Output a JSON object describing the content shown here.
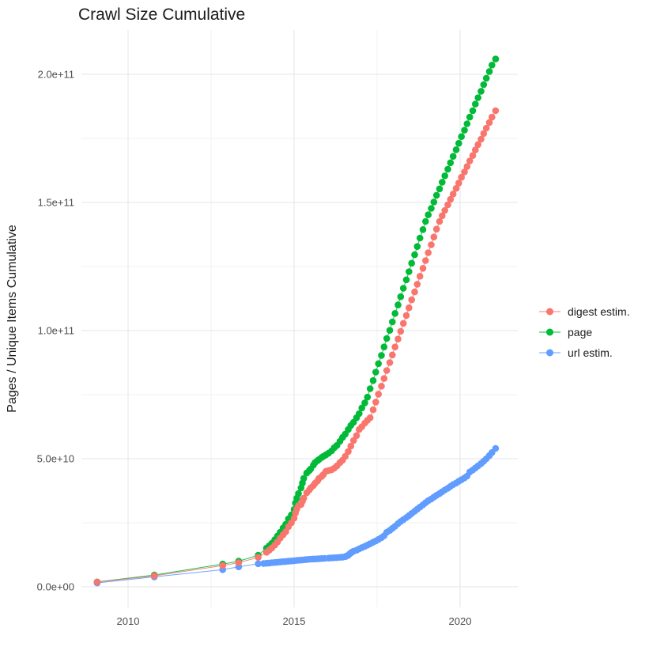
{
  "title": "Crawl Size Cumulative",
  "axes": {
    "y_title": "Pages / Unique Items Cumulative",
    "x_title": "",
    "y_ticks": [
      {
        "label": "0.0e+00",
        "value_e9": 0
      },
      {
        "label": "5.0e+10",
        "value_e9": 50
      },
      {
        "label": "1.0e+11",
        "value_e9": 100
      },
      {
        "label": "1.5e+11",
        "value_e9": 150
      },
      {
        "label": "2.0e+11",
        "value_e9": 200
      }
    ],
    "x_ticks": [
      {
        "label": "2010",
        "value": 2010
      },
      {
        "label": "2015",
        "value": 2015
      },
      {
        "label": "2020",
        "value": 2020
      }
    ],
    "y_minor_e9": [
      25,
      75,
      125,
      175
    ],
    "x_minor": [
      2012.5,
      2017.5
    ]
  },
  "legend": {
    "position": "right",
    "items": [
      {
        "label": "digest estim.",
        "color": "#F8766D"
      },
      {
        "label": "page",
        "color": "#00BA38"
      },
      {
        "label": "url estim.",
        "color": "#619CFF"
      }
    ]
  },
  "style": {
    "background": "#FFFFFF",
    "grid_major_color": "#E6E6E6",
    "grid_minor_color": "#F1F1F1",
    "tick_label_color": "#4D4D4D",
    "text_color": "#1A1A1A"
  },
  "chart_data": {
    "type": "scatter",
    "title": "Crawl Size Cumulative",
    "xlabel": "",
    "ylabel": "Pages / Unique Items Cumulative",
    "xlim": [
      2008.5,
      2021.7
    ],
    "ylim": [
      0,
      216000000000.0
    ],
    "grid": true,
    "legend_position": "right",
    "value_scale": "y values in points_e9 are billions (1e9) of pages / unique items; x values are decimal years",
    "series": [
      {
        "name": "digest estim.",
        "color": "#F8766D",
        "points_e9": [
          [
            2009.07,
            1.85
          ],
          [
            2010.79,
            4.3
          ],
          [
            2012.85,
            8.3
          ],
          [
            2013.33,
            9.4
          ],
          [
            2013.92,
            11.5
          ],
          [
            2014.17,
            13.5
          ],
          [
            2014.25,
            14.3
          ],
          [
            2014.33,
            15.2
          ],
          [
            2014.42,
            16.3
          ],
          [
            2014.5,
            17.5
          ],
          [
            2014.58,
            19.0
          ],
          [
            2014.67,
            20.3
          ],
          [
            2014.75,
            21.5
          ],
          [
            2014.83,
            23.5
          ],
          [
            2014.92,
            25.0
          ],
          [
            2015.0,
            26.8
          ],
          [
            2015.04,
            28.8
          ],
          [
            2015.08,
            30.3
          ],
          [
            2015.13,
            31.7
          ],
          [
            2015.21,
            32.1
          ],
          [
            2015.25,
            33.4
          ],
          [
            2015.29,
            34.6
          ],
          [
            2015.38,
            36.7
          ],
          [
            2015.46,
            37.8
          ],
          [
            2015.5,
            38.6
          ],
          [
            2015.58,
            39.5
          ],
          [
            2015.63,
            40.4
          ],
          [
            2015.71,
            41.4
          ],
          [
            2015.75,
            42.3
          ],
          [
            2015.83,
            43.1
          ],
          [
            2015.88,
            43.8
          ],
          [
            2015.96,
            45.1
          ],
          [
            2016.04,
            45.4
          ],
          [
            2016.13,
            45.7
          ],
          [
            2016.21,
            46.3
          ],
          [
            2016.29,
            47.2
          ],
          [
            2016.38,
            48.5
          ],
          [
            2016.46,
            49.4
          ],
          [
            2016.54,
            50.9
          ],
          [
            2016.63,
            52.8
          ],
          [
            2016.71,
            54.9
          ],
          [
            2016.79,
            57.1
          ],
          [
            2016.88,
            59.0
          ],
          [
            2016.96,
            61.4
          ],
          [
            2017.04,
            62.5
          ],
          [
            2017.13,
            63.9
          ],
          [
            2017.21,
            65.0
          ],
          [
            2017.29,
            66.0
          ],
          [
            2017.38,
            69.1
          ],
          [
            2017.46,
            72.1
          ],
          [
            2017.54,
            75.2
          ],
          [
            2017.63,
            78.3
          ],
          [
            2017.71,
            81.3
          ],
          [
            2017.79,
            84.4
          ],
          [
            2017.88,
            87.5
          ],
          [
            2017.96,
            90.5
          ],
          [
            2018.04,
            93.6
          ],
          [
            2018.13,
            96.7
          ],
          [
            2018.21,
            99.7
          ],
          [
            2018.29,
            102.8
          ],
          [
            2018.38,
            105.9
          ],
          [
            2018.46,
            108.9
          ],
          [
            2018.54,
            112.0
          ],
          [
            2018.63,
            115.1
          ],
          [
            2018.71,
            118.1
          ],
          [
            2018.79,
            121.2
          ],
          [
            2018.88,
            124.3
          ],
          [
            2018.96,
            127.3
          ],
          [
            2019.04,
            130.4
          ],
          [
            2019.13,
            133.5
          ],
          [
            2019.21,
            136.5
          ],
          [
            2019.29,
            139.6
          ],
          [
            2019.38,
            142.6
          ],
          [
            2019.46,
            144.8
          ],
          [
            2019.54,
            146.9
          ],
          [
            2019.63,
            149.1
          ],
          [
            2019.71,
            151.2
          ],
          [
            2019.79,
            153.3
          ],
          [
            2019.88,
            155.5
          ],
          [
            2019.96,
            157.6
          ],
          [
            2020.04,
            159.8
          ],
          [
            2020.13,
            161.9
          ],
          [
            2020.21,
            164.0
          ],
          [
            2020.29,
            166.2
          ],
          [
            2020.38,
            168.3
          ],
          [
            2020.46,
            170.5
          ],
          [
            2020.54,
            172.6
          ],
          [
            2020.63,
            174.7
          ],
          [
            2020.71,
            176.9
          ],
          [
            2020.79,
            179.0
          ],
          [
            2020.88,
            181.2
          ],
          [
            2020.96,
            183.3
          ],
          [
            2021.07,
            185.8
          ]
        ]
      },
      {
        "name": "page",
        "color": "#00BA38",
        "points_e9": [
          [
            2009.07,
            1.9
          ],
          [
            2010.79,
            4.6
          ],
          [
            2012.85,
            8.9
          ],
          [
            2013.33,
            10.0
          ],
          [
            2013.92,
            12.3
          ],
          [
            2014.17,
            15.1
          ],
          [
            2014.25,
            16.0
          ],
          [
            2014.33,
            17.0
          ],
          [
            2014.42,
            18.4
          ],
          [
            2014.5,
            19.8
          ],
          [
            2014.58,
            21.3
          ],
          [
            2014.67,
            23.0
          ],
          [
            2014.75,
            24.4
          ],
          [
            2014.83,
            26.5
          ],
          [
            2014.92,
            28.1
          ],
          [
            2015.0,
            30.2
          ],
          [
            2015.04,
            32.7
          ],
          [
            2015.08,
            34.6
          ],
          [
            2015.13,
            36.4
          ],
          [
            2015.21,
            38.6
          ],
          [
            2015.25,
            40.5
          ],
          [
            2015.29,
            42.3
          ],
          [
            2015.38,
            44.4
          ],
          [
            2015.46,
            45.4
          ],
          [
            2015.5,
            46.0
          ],
          [
            2015.58,
            47.5
          ],
          [
            2015.63,
            48.5
          ],
          [
            2015.71,
            49.3
          ],
          [
            2015.75,
            49.7
          ],
          [
            2015.83,
            50.5
          ],
          [
            2015.88,
            50.9
          ],
          [
            2015.96,
            51.5
          ],
          [
            2016.04,
            52.2
          ],
          [
            2016.13,
            53.1
          ],
          [
            2016.21,
            54.3
          ],
          [
            2016.29,
            55.2
          ],
          [
            2016.38,
            56.8
          ],
          [
            2016.46,
            58.3
          ],
          [
            2016.54,
            59.6
          ],
          [
            2016.63,
            61.4
          ],
          [
            2016.71,
            63.0
          ],
          [
            2016.79,
            64.2
          ],
          [
            2016.88,
            66.0
          ],
          [
            2016.96,
            67.6
          ],
          [
            2017.04,
            69.8
          ],
          [
            2017.13,
            71.8
          ],
          [
            2017.21,
            74.0
          ],
          [
            2017.29,
            77.3
          ],
          [
            2017.38,
            80.5
          ],
          [
            2017.46,
            83.8
          ],
          [
            2017.54,
            87.1
          ],
          [
            2017.63,
            90.3
          ],
          [
            2017.71,
            93.6
          ],
          [
            2017.79,
            96.9
          ],
          [
            2017.88,
            100.1
          ],
          [
            2017.96,
            103.4
          ],
          [
            2018.04,
            106.7
          ],
          [
            2018.13,
            110.0
          ],
          [
            2018.21,
            113.2
          ],
          [
            2018.29,
            116.5
          ],
          [
            2018.38,
            119.8
          ],
          [
            2018.46,
            123.0
          ],
          [
            2018.54,
            126.3
          ],
          [
            2018.63,
            129.6
          ],
          [
            2018.71,
            132.8
          ],
          [
            2018.79,
            136.1
          ],
          [
            2018.88,
            139.4
          ],
          [
            2018.96,
            142.6
          ],
          [
            2019.04,
            145.2
          ],
          [
            2019.13,
            147.7
          ],
          [
            2019.21,
            150.2
          ],
          [
            2019.29,
            152.8
          ],
          [
            2019.38,
            155.3
          ],
          [
            2019.46,
            157.9
          ],
          [
            2019.54,
            160.4
          ],
          [
            2019.63,
            163.0
          ],
          [
            2019.71,
            165.5
          ],
          [
            2019.79,
            168.0
          ],
          [
            2019.88,
            170.6
          ],
          [
            2019.96,
            173.1
          ],
          [
            2020.04,
            175.7
          ],
          [
            2020.13,
            178.2
          ],
          [
            2020.21,
            180.7
          ],
          [
            2020.29,
            183.3
          ],
          [
            2020.38,
            185.8
          ],
          [
            2020.46,
            188.4
          ],
          [
            2020.54,
            190.9
          ],
          [
            2020.63,
            193.4
          ],
          [
            2020.71,
            196.0
          ],
          [
            2020.79,
            198.5
          ],
          [
            2020.88,
            201.1
          ],
          [
            2020.96,
            203.6
          ],
          [
            2021.07,
            206.0
          ]
        ]
      },
      {
        "name": "url estim.",
        "color": "#619CFF",
        "points_e9": [
          [
            2009.07,
            1.5
          ],
          [
            2010.79,
            3.9
          ],
          [
            2012.85,
            6.7
          ],
          [
            2013.33,
            7.8
          ],
          [
            2013.92,
            9.0
          ],
          [
            2014.08,
            9.1
          ],
          [
            2014.17,
            9.2
          ],
          [
            2014.25,
            9.3
          ],
          [
            2014.33,
            9.4
          ],
          [
            2014.42,
            9.5
          ],
          [
            2014.5,
            9.6
          ],
          [
            2014.58,
            9.7
          ],
          [
            2014.67,
            9.8
          ],
          [
            2014.75,
            9.9
          ],
          [
            2014.83,
            10.0
          ],
          [
            2014.92,
            10.1
          ],
          [
            2015.0,
            10.2
          ],
          [
            2015.08,
            10.3
          ],
          [
            2015.17,
            10.4
          ],
          [
            2015.25,
            10.5
          ],
          [
            2015.33,
            10.6
          ],
          [
            2015.42,
            10.7
          ],
          [
            2015.5,
            10.8
          ],
          [
            2015.58,
            10.85
          ],
          [
            2015.67,
            10.9
          ],
          [
            2015.75,
            11.0
          ],
          [
            2015.83,
            11.05
          ],
          [
            2015.92,
            11.1
          ],
          [
            2016.04,
            11.2
          ],
          [
            2016.13,
            11.3
          ],
          [
            2016.21,
            11.35
          ],
          [
            2016.29,
            11.4
          ],
          [
            2016.38,
            11.5
          ],
          [
            2016.46,
            11.6
          ],
          [
            2016.54,
            11.8
          ],
          [
            2016.58,
            12.0
          ],
          [
            2016.63,
            12.3
          ],
          [
            2016.67,
            12.8
          ],
          [
            2016.71,
            13.2
          ],
          [
            2016.75,
            13.6
          ],
          [
            2016.79,
            13.9
          ],
          [
            2016.88,
            14.3
          ],
          [
            2016.96,
            14.8
          ],
          [
            2017.04,
            15.3
          ],
          [
            2017.13,
            15.8
          ],
          [
            2017.21,
            16.3
          ],
          [
            2017.29,
            16.8
          ],
          [
            2017.38,
            17.4
          ],
          [
            2017.46,
            17.9
          ],
          [
            2017.54,
            18.5
          ],
          [
            2017.63,
            19.2
          ],
          [
            2017.71,
            19.9
          ],
          [
            2017.79,
            21.3
          ],
          [
            2017.88,
            22.0
          ],
          [
            2017.96,
            22.8
          ],
          [
            2018.04,
            23.6
          ],
          [
            2018.13,
            24.7
          ],
          [
            2018.21,
            25.5
          ],
          [
            2018.29,
            26.2
          ],
          [
            2018.38,
            27.0
          ],
          [
            2018.46,
            27.8
          ],
          [
            2018.54,
            28.6
          ],
          [
            2018.63,
            29.5
          ],
          [
            2018.71,
            30.3
          ],
          [
            2018.79,
            31.1
          ],
          [
            2018.88,
            32.0
          ],
          [
            2018.96,
            32.8
          ],
          [
            2019.04,
            33.6
          ],
          [
            2019.13,
            34.3
          ],
          [
            2019.21,
            35.0
          ],
          [
            2019.29,
            35.7
          ],
          [
            2019.38,
            36.4
          ],
          [
            2019.46,
            37.1
          ],
          [
            2019.54,
            37.8
          ],
          [
            2019.63,
            38.5
          ],
          [
            2019.71,
            39.2
          ],
          [
            2019.79,
            39.9
          ],
          [
            2019.88,
            40.5
          ],
          [
            2019.96,
            41.2
          ],
          [
            2020.04,
            41.8
          ],
          [
            2020.13,
            42.5
          ],
          [
            2020.21,
            43.2
          ],
          [
            2020.29,
            44.8
          ],
          [
            2020.38,
            45.6
          ],
          [
            2020.46,
            46.4
          ],
          [
            2020.54,
            47.2
          ],
          [
            2020.63,
            48.1
          ],
          [
            2020.71,
            49.0
          ],
          [
            2020.79,
            50.0
          ],
          [
            2020.88,
            51.2
          ],
          [
            2020.96,
            52.4
          ],
          [
            2021.07,
            54.0
          ]
        ]
      }
    ]
  }
}
